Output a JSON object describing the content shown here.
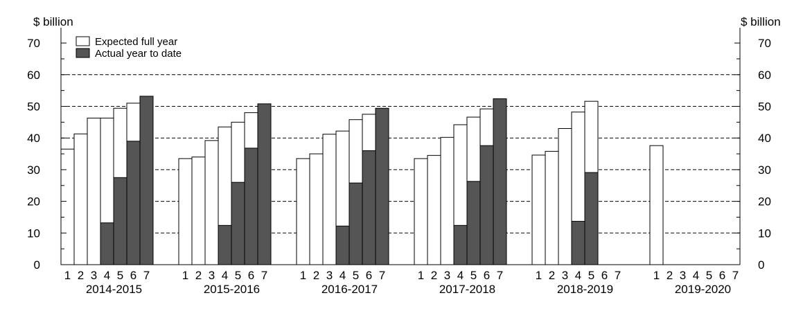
{
  "chart_data": {
    "type": "bar",
    "units_left": "$ billion",
    "units_right": "$ billion",
    "ylim": [
      0,
      70
    ],
    "y_ticks": [
      "0",
      "10",
      "20",
      "30",
      "40",
      "50",
      "60",
      "70"
    ],
    "grid": "dashed horizontal at 10, 20, 30, 40, 50, 60",
    "legend_position": "top-left",
    "legend": [
      {
        "key": "expected",
        "label": "Expected full year",
        "color": "#ffffff"
      },
      {
        "key": "actual",
        "label": "Actual year to date",
        "color": "#555555"
      }
    ],
    "sub_ticks": [
      "1",
      "2",
      "3",
      "4",
      "5",
      "6",
      "7"
    ],
    "groups": [
      {
        "label": "2014-2015",
        "expected": [
          36.5,
          41.3,
          46.3,
          46.3,
          49.4,
          51.0,
          null
        ],
        "actual": [
          null,
          null,
          null,
          13.2,
          27.5,
          39.0,
          53.2
        ]
      },
      {
        "label": "2015-2016",
        "expected": [
          33.5,
          34.0,
          39.2,
          43.5,
          45.0,
          48.0,
          null
        ],
        "actual": [
          null,
          null,
          null,
          12.4,
          26.0,
          36.8,
          50.8
        ]
      },
      {
        "label": "2016-2017",
        "expected": [
          33.5,
          35.0,
          41.2,
          42.2,
          45.8,
          47.5,
          null
        ],
        "actual": [
          null,
          null,
          null,
          12.2,
          25.8,
          36.0,
          49.4
        ]
      },
      {
        "label": "2017-2018",
        "expected": [
          33.5,
          34.5,
          40.2,
          44.2,
          46.6,
          49.2,
          null
        ],
        "actual": [
          null,
          null,
          null,
          12.4,
          26.3,
          37.6,
          52.4
        ]
      },
      {
        "label": "2018-2019",
        "expected": [
          34.6,
          35.8,
          43.0,
          48.2,
          51.6,
          null,
          null
        ],
        "actual": [
          null,
          null,
          null,
          13.7,
          29.1,
          null,
          null
        ]
      },
      {
        "label": "2019-2020",
        "expected": [
          37.6,
          null,
          null,
          null,
          null,
          null,
          null
        ],
        "actual": [
          null,
          null,
          null,
          null,
          null,
          null,
          null
        ]
      }
    ]
  }
}
